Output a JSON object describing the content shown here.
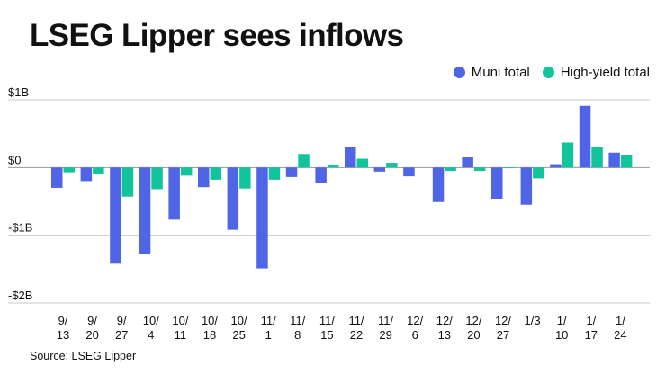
{
  "title": "LSEG Lipper sees inflows",
  "source": "Source: LSEG Lipper",
  "chart_data": {
    "type": "bar",
    "title": "LSEG Lipper sees inflows",
    "xlabel": "",
    "ylabel": "",
    "ylim": [
      -2,
      1
    ],
    "yticks": [
      1,
      0,
      -1,
      -2
    ],
    "ytick_labels": [
      "$1B",
      "$0",
      "-$1B",
      "-$2B"
    ],
    "grid": true,
    "legend_position": "top-right",
    "categories": [
      [
        "9/",
        "13"
      ],
      [
        "9/",
        "20"
      ],
      [
        "9/",
        "27"
      ],
      [
        "10/",
        "4"
      ],
      [
        "10/",
        "11"
      ],
      [
        "10/",
        "18"
      ],
      [
        "10/",
        "25"
      ],
      [
        "11/",
        "1"
      ],
      [
        "11/",
        "8"
      ],
      [
        "11/",
        "15"
      ],
      [
        "11/",
        "22"
      ],
      [
        "11/",
        "29"
      ],
      [
        "12/",
        "6"
      ],
      [
        "12/",
        "13"
      ],
      [
        "12/",
        "20"
      ],
      [
        "12/",
        "27"
      ],
      [
        "1/3"
      ],
      [
        "1/",
        "10"
      ],
      [
        "1/",
        "17"
      ],
      [
        "1/",
        "24"
      ]
    ],
    "series": [
      {
        "name": "Muni total",
        "color": "#5065e6",
        "values": [
          -0.3,
          -0.2,
          -1.42,
          -1.27,
          -0.77,
          -0.29,
          -0.92,
          -1.49,
          -0.14,
          -0.23,
          0.3,
          -0.06,
          -0.13,
          -0.51,
          0.15,
          -0.46,
          -0.55,
          0.05,
          0.91,
          0.22
        ]
      },
      {
        "name": "High-yield total",
        "color": "#12c49c",
        "values": [
          -0.07,
          -0.09,
          -0.43,
          -0.32,
          -0.12,
          -0.18,
          -0.31,
          -0.18,
          0.2,
          0.04,
          0.13,
          0.07,
          0.0,
          -0.05,
          -0.05,
          -0.01,
          -0.16,
          0.37,
          0.3,
          0.19
        ]
      }
    ]
  }
}
